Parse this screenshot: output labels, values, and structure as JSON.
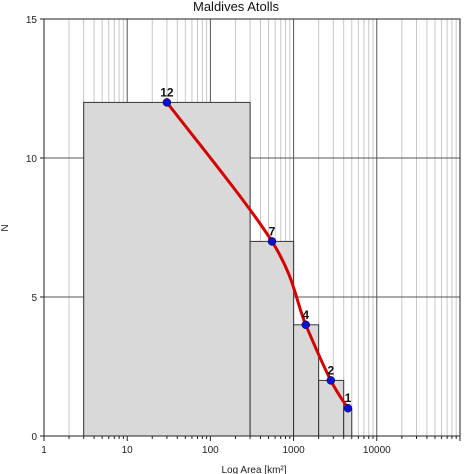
{
  "chart_data": {
    "type": "bar",
    "title": "Maldives Atolls",
    "xlabel": "Log Area [km²]",
    "ylabel": "N",
    "x_scale": "log",
    "xlim": [
      1,
      100000
    ],
    "ylim": [
      0,
      15
    ],
    "x_ticks": [
      "1",
      "10",
      "100",
      "1000",
      "10000"
    ],
    "y_ticks": [
      "0",
      "5",
      "10",
      "15"
    ],
    "grid": true,
    "bars": [
      {
        "x_from": 3,
        "x_to": 300,
        "value": 12
      },
      {
        "x_from": 300,
        "x_to": 1000,
        "value": 7
      },
      {
        "x_from": 1000,
        "x_to": 2000,
        "value": 4
      },
      {
        "x_from": 2000,
        "x_to": 4000,
        "value": 2
      },
      {
        "x_from": 4000,
        "x_to": 5000,
        "value": 1
      }
    ],
    "series": [
      {
        "type": "line",
        "color": "#d40000",
        "marker_color": "#1010c8",
        "points": [
          {
            "x": 30,
            "y": 12,
            "label": "12"
          },
          {
            "x": 550,
            "y": 7,
            "label": "7"
          },
          {
            "x": 1400,
            "y": 4,
            "label": "4"
          },
          {
            "x": 2800,
            "y": 2,
            "label": "2"
          },
          {
            "x": 4500,
            "y": 1,
            "label": "1"
          }
        ]
      }
    ],
    "colors": {
      "bar_fill": "#d9d9d9",
      "bar_stroke": "#333333",
      "grid_major": "#555555",
      "grid_minor": "#c8c8c8"
    }
  }
}
